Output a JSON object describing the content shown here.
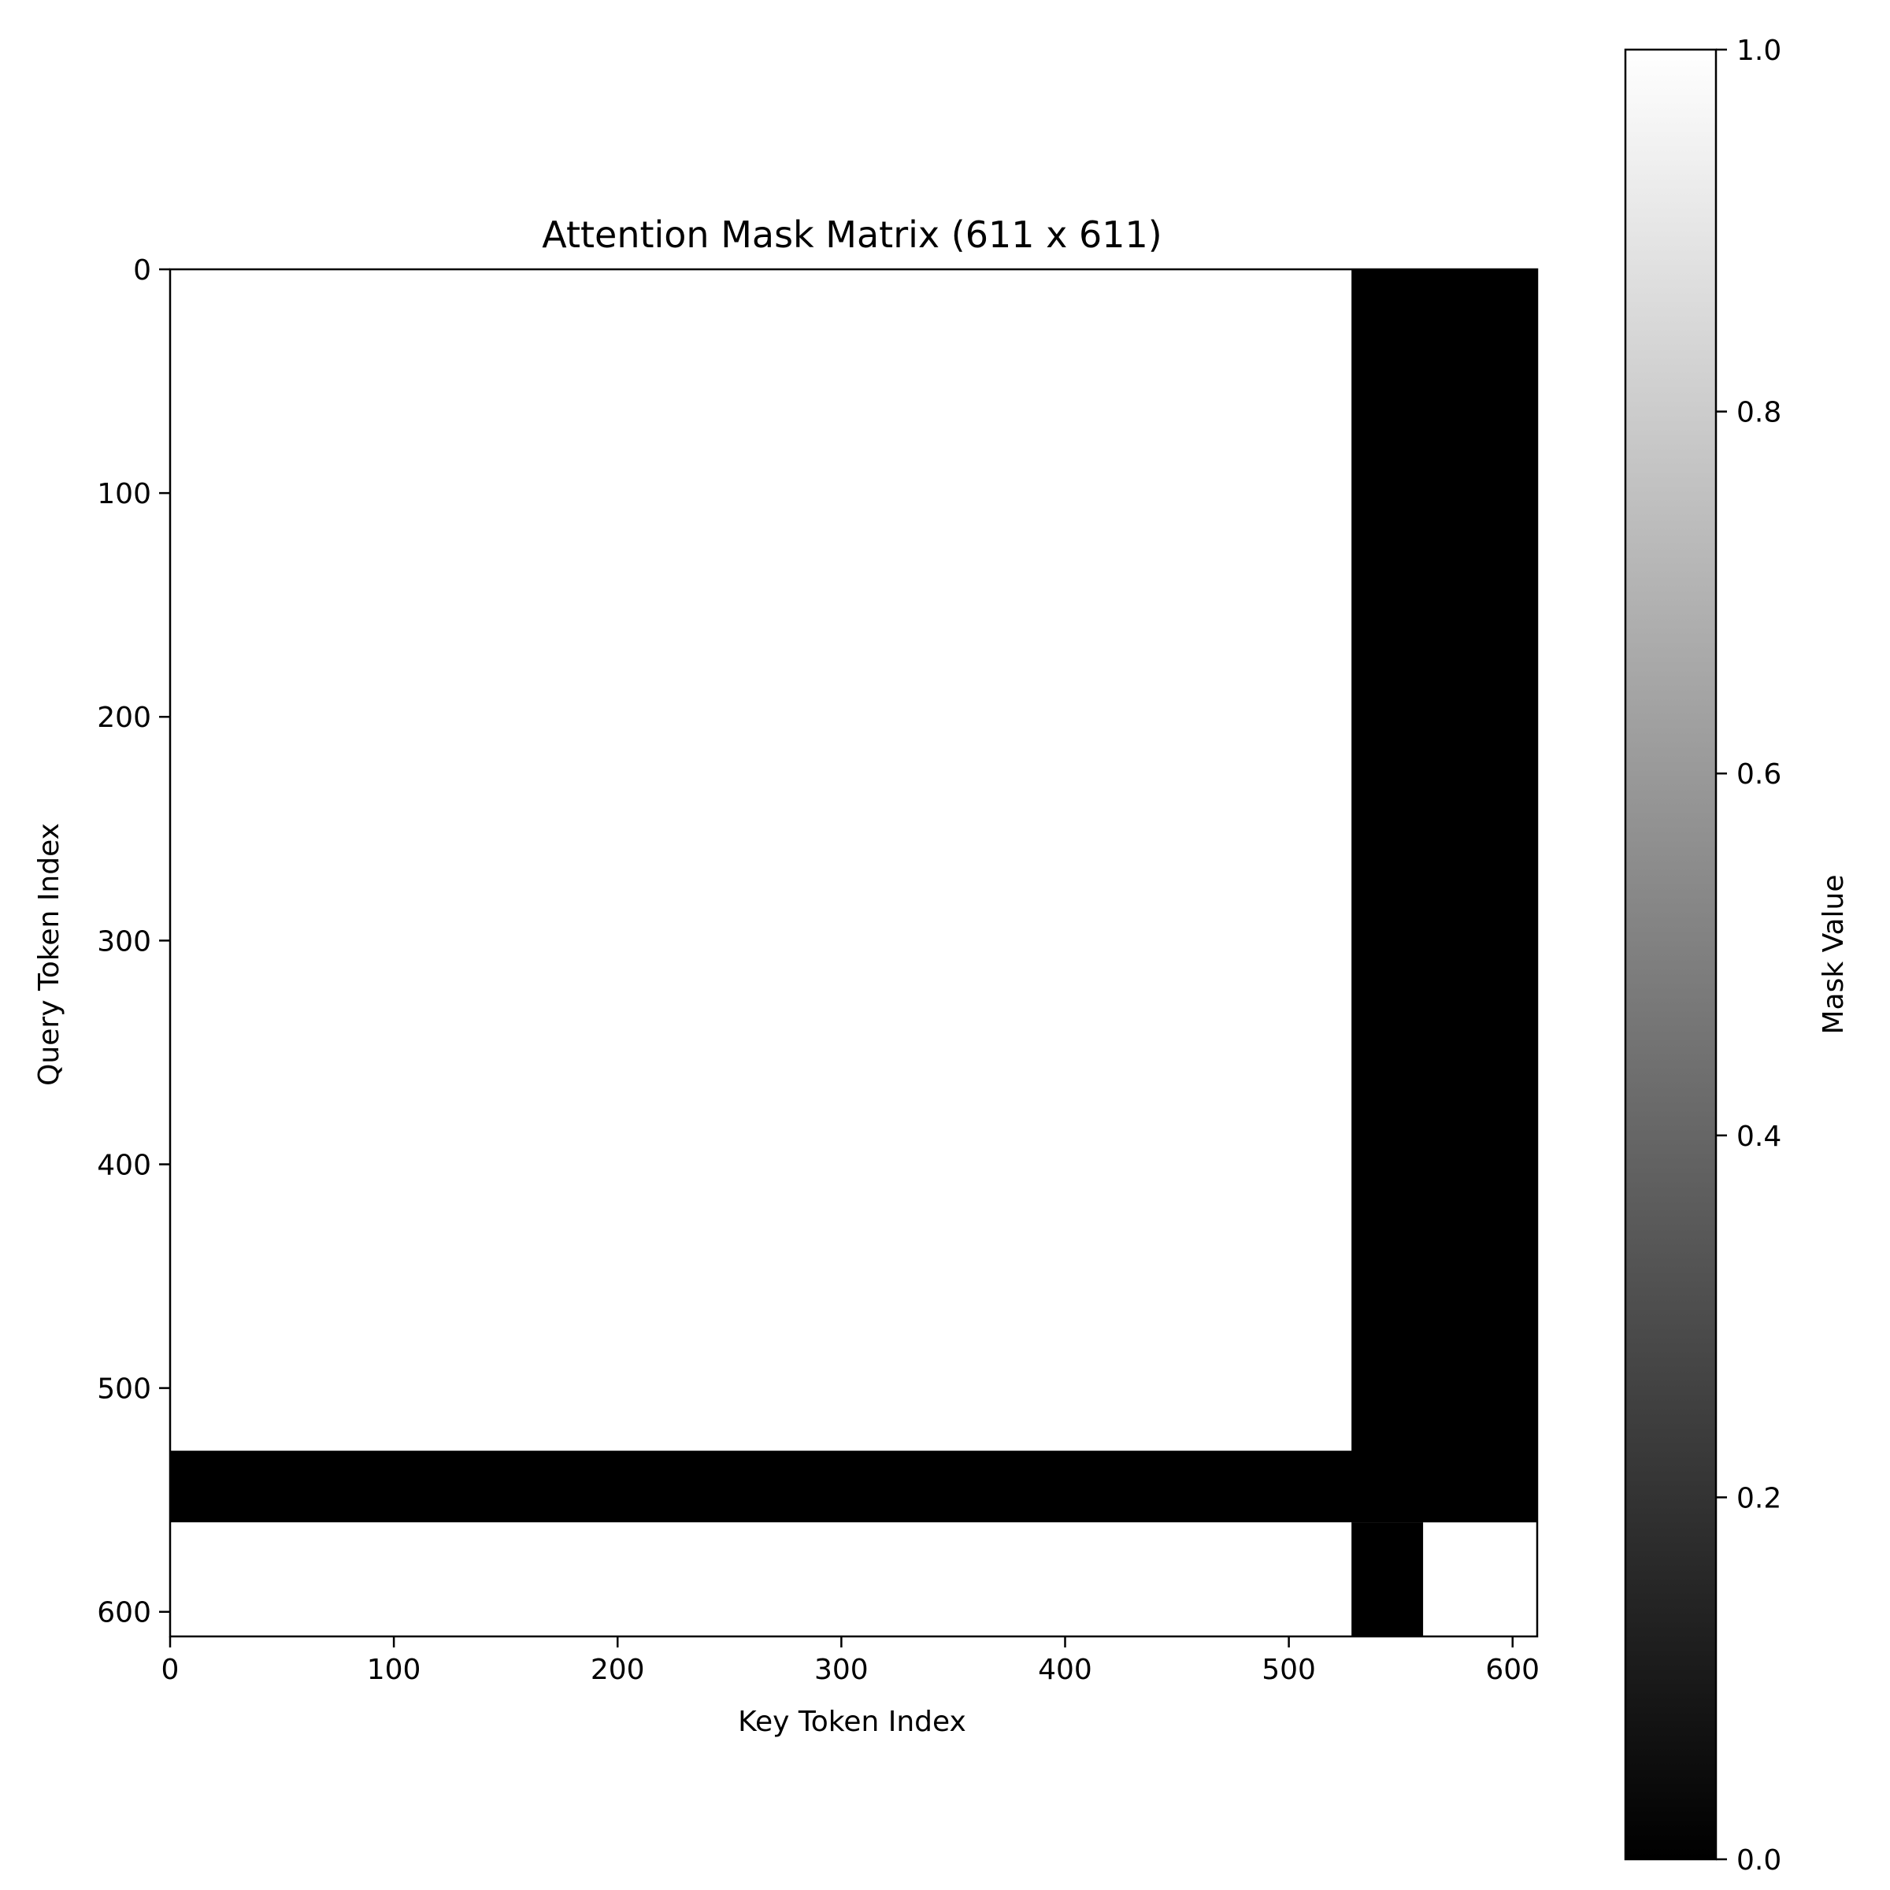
{
  "chart_data": {
    "type": "heatmap",
    "title": "Attention Mask Matrix (611 x 611)",
    "xlabel": "Key Token Index",
    "ylabel": "Query Token Index",
    "colorbar_label": "Mask Value",
    "matrix_size": [
      611,
      611
    ],
    "xlim": [
      0,
      611
    ],
    "ylim": [
      611,
      0
    ],
    "x_ticks": [
      0,
      100,
      200,
      300,
      400,
      500,
      600
    ],
    "y_ticks": [
      0,
      100,
      200,
      300,
      400,
      500,
      600
    ],
    "colorbar_ticks": [
      0.0,
      0.2,
      0.4,
      0.6,
      0.8,
      1.0
    ],
    "colorbar_tick_labels": [
      "0.0",
      "0.2",
      "0.4",
      "0.6",
      "0.8",
      "1.0"
    ],
    "colormap": "gray",
    "vmin": 0.0,
    "vmax": 1.0,
    "default_value": 1,
    "masked_regions": [
      {
        "name": "key-columns-528-610-rows-0-560",
        "key_start": 528,
        "key_end": 611,
        "query_start": 0,
        "query_end": 560,
        "value": 0
      },
      {
        "name": "query-rows-528-559",
        "key_start": 0,
        "key_end": 611,
        "query_start": 528,
        "query_end": 560,
        "value": 0
      },
      {
        "name": "key-columns-528-559-rows-560-610",
        "key_start": 528,
        "key_end": 560,
        "query_start": 560,
        "query_end": 611,
        "value": 0
      }
    ],
    "colors": {
      "masked": "#000000",
      "unmasked": "#ffffff"
    }
  }
}
